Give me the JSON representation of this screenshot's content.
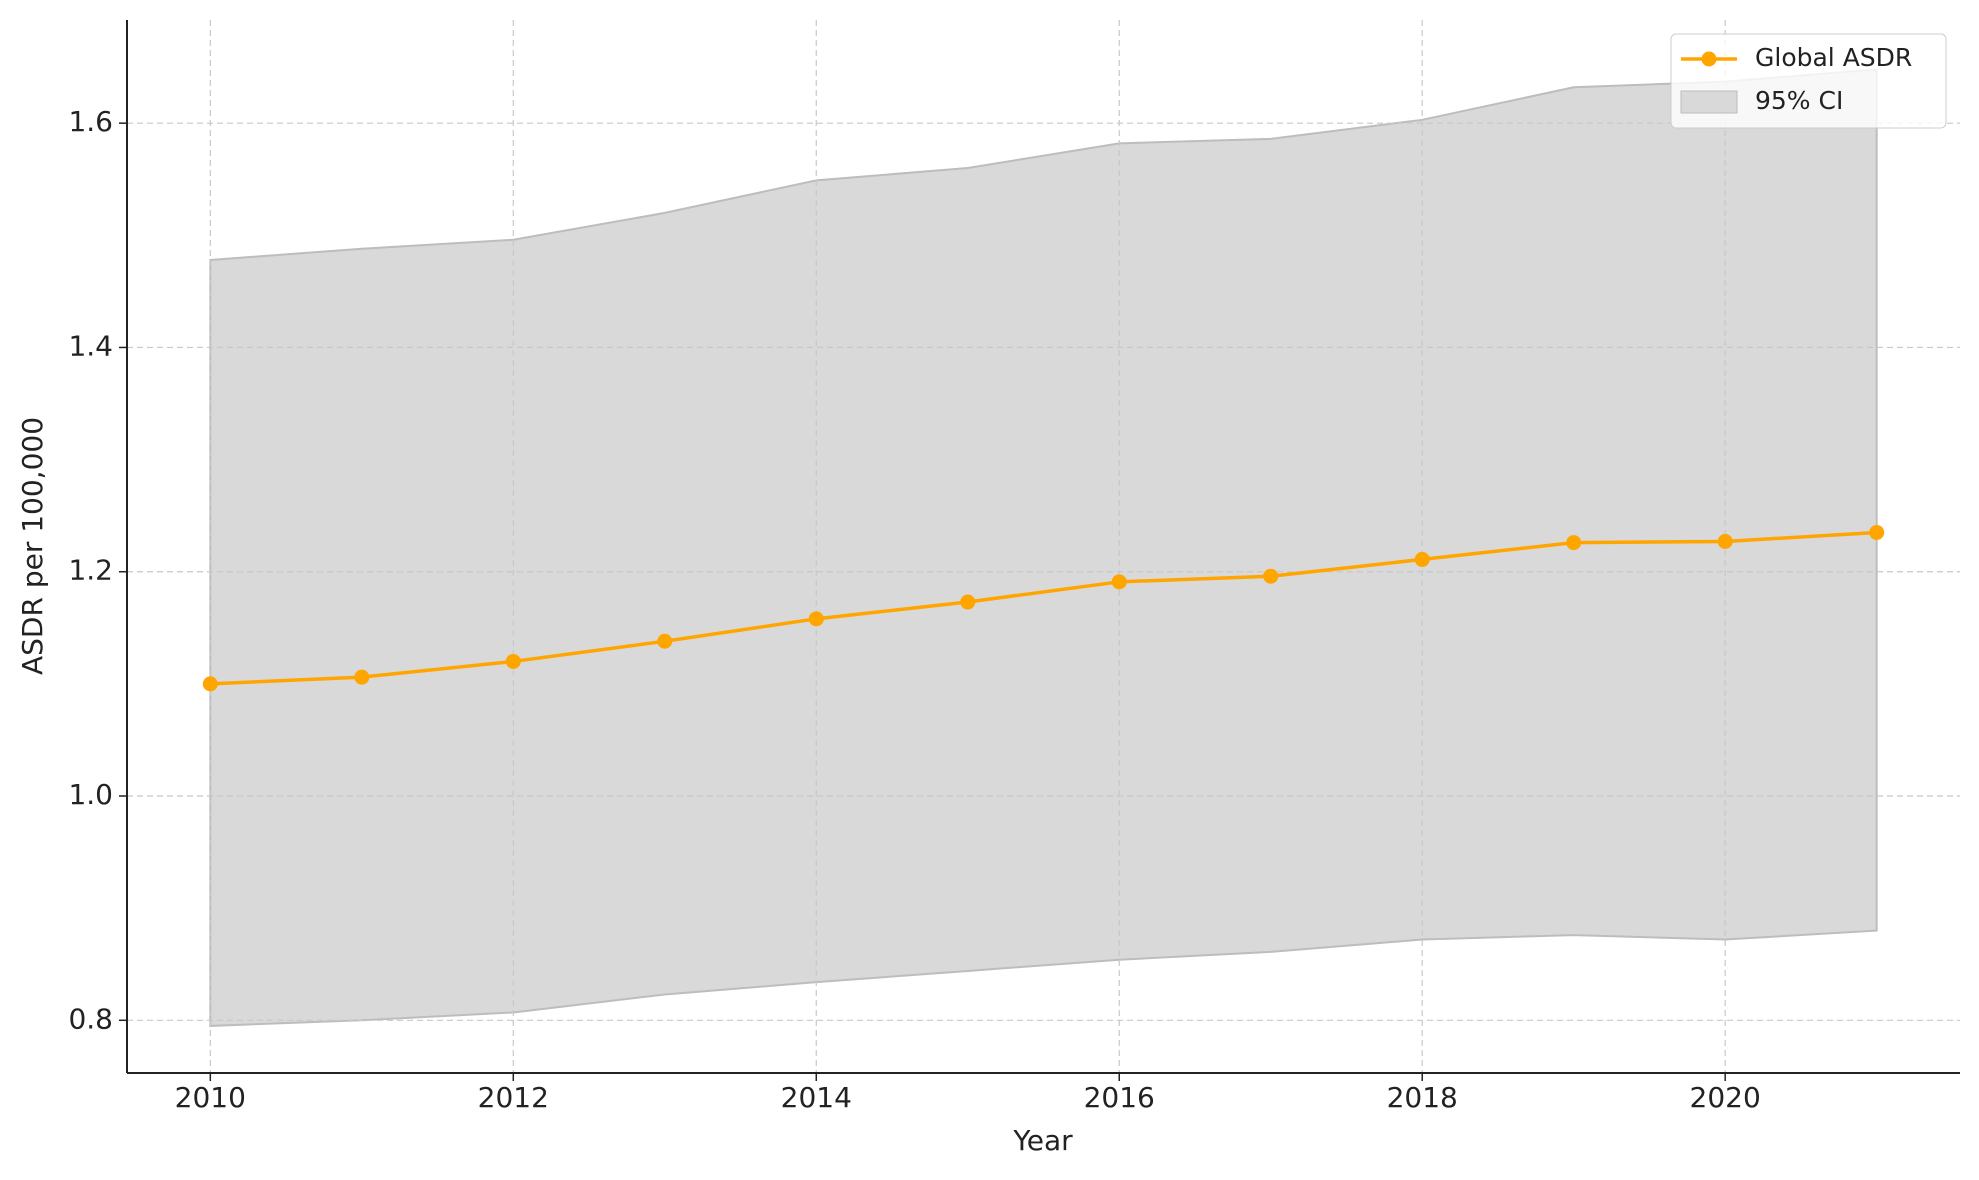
{
  "chart_data": {
    "type": "line",
    "x_label": "Year",
    "y_label": "ASDR per 100,000",
    "x": [
      2010,
      2011,
      2012,
      2013,
      2014,
      2015,
      2016,
      2017,
      2018,
      2019,
      2020,
      2021
    ],
    "series": [
      {
        "name": "Global ASDR",
        "color": "#ffa500",
        "values": [
          1.1,
          1.106,
          1.12,
          1.138,
          1.158,
          1.173,
          1.191,
          1.196,
          1.211,
          1.226,
          1.227,
          1.235
        ]
      }
    ],
    "ci": {
      "name": "95% CI",
      "color": "#d9d9d9",
      "edge": "#bdbdbd",
      "lower": [
        0.795,
        0.8,
        0.807,
        0.823,
        0.834,
        0.844,
        0.854,
        0.861,
        0.872,
        0.876,
        0.872,
        0.88
      ],
      "upper": [
        1.478,
        1.488,
        1.496,
        1.52,
        1.549,
        1.56,
        1.582,
        1.586,
        1.603,
        1.632,
        1.637,
        1.648
      ]
    },
    "xlim": [
      2009.45,
      2021.55
    ],
    "ylim": [
      0.753,
      1.692
    ],
    "xticks": [
      2010,
      2012,
      2014,
      2016,
      2018,
      2020
    ],
    "yticks": [
      0.8,
      {
        "value": 1,
        "label": "1.0"
      },
      1.2,
      1.4,
      1.6
    ],
    "grid": true,
    "legend": "upper right"
  }
}
